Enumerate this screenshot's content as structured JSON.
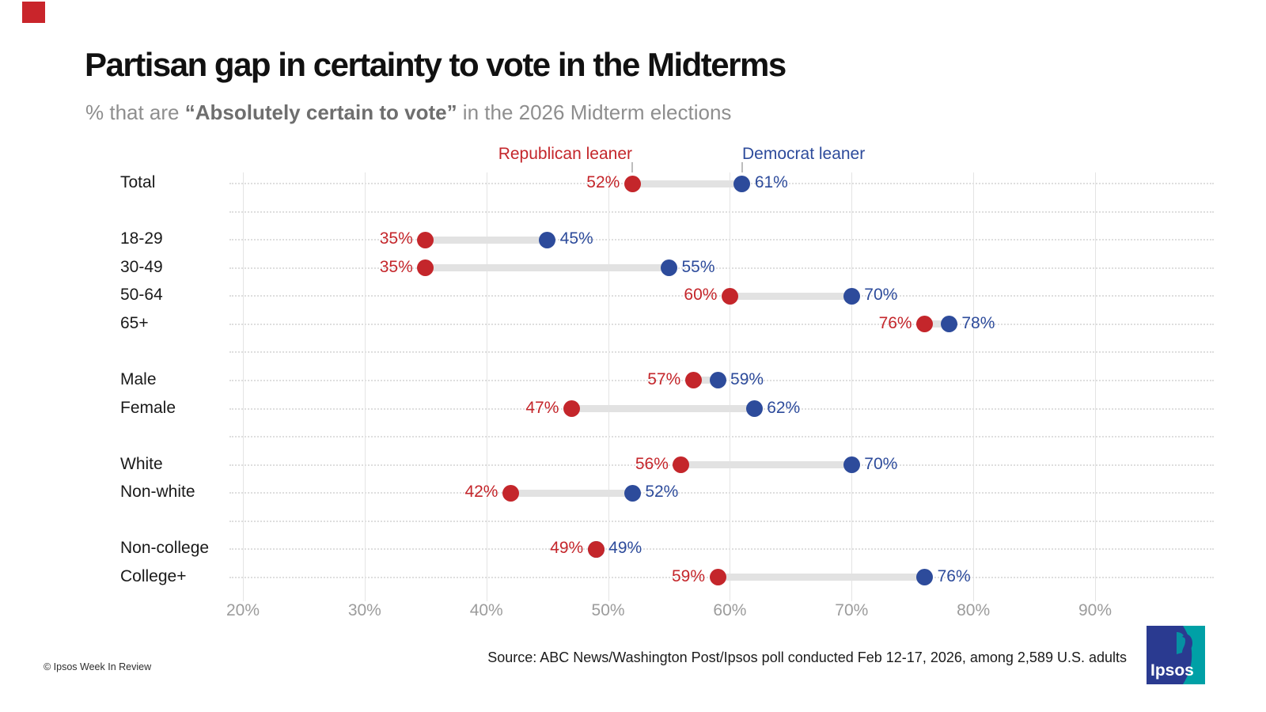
{
  "page": {
    "title": "Partisan gap in certainty to vote in the Midterms",
    "subtitle": {
      "prefix": "% that are ",
      "bold": "“Absolutely certain to vote”",
      "suffix": " in the 2026 Midterm elections"
    },
    "source": "Source: ABC News/Washington Post/Ipsos poll conducted Feb 12-17, 2026, among 2,589 U.S. adults",
    "copyright": "© Ipsos Week In Review",
    "logo_text": "Ipsos",
    "corner_square_color": "#c9252b"
  },
  "chart_data": {
    "type": "dumbbell",
    "title": "Partisan gap in certainty to vote in the Midterms",
    "legend": [
      {
        "name": "Republican leaner",
        "key": "republican"
      },
      {
        "name": "Democrat leaner",
        "key": "democrat"
      }
    ],
    "colors": {
      "republican": "#c4262b",
      "democrat": "#2d4b9b",
      "connector": "#e2e2e2",
      "grid": "#e4e4e4",
      "logo_blue": "#2a3a90",
      "logo_teal": "#00a0a6"
    },
    "value_suffix": "%",
    "x_ticks": [
      20,
      30,
      40,
      50,
      60,
      70,
      80,
      90
    ],
    "x_tick_labels": [
      "20%",
      "30%",
      "40%",
      "50%",
      "60%",
      "70%",
      "80%",
      "90%"
    ],
    "xlim": [
      20,
      90
    ],
    "grid": true,
    "legend_position": "top",
    "rows": [
      {
        "label": "Total",
        "republican": 52,
        "democrat": 61,
        "slot": 0
      },
      {
        "label": "18-29",
        "republican": 35,
        "democrat": 45,
        "slot": 2
      },
      {
        "label": "30-49",
        "republican": 35,
        "democrat": 55,
        "slot": 3
      },
      {
        "label": "50-64",
        "republican": 60,
        "democrat": 70,
        "slot": 4
      },
      {
        "label": "65+",
        "republican": 76,
        "democrat": 78,
        "slot": 5
      },
      {
        "label": "Male",
        "republican": 57,
        "democrat": 59,
        "slot": 7
      },
      {
        "label": "Female",
        "republican": 47,
        "democrat": 62,
        "slot": 8
      },
      {
        "label": "White",
        "republican": 56,
        "democrat": 70,
        "slot": 10
      },
      {
        "label": "Non-white",
        "republican": 42,
        "democrat": 52,
        "slot": 11
      },
      {
        "label": "Non-college",
        "republican": 49,
        "democrat": 49,
        "slot": 13
      },
      {
        "label": "College+",
        "republican": 59,
        "democrat": 76,
        "slot": 14
      }
    ],
    "total_slots": 15
  }
}
